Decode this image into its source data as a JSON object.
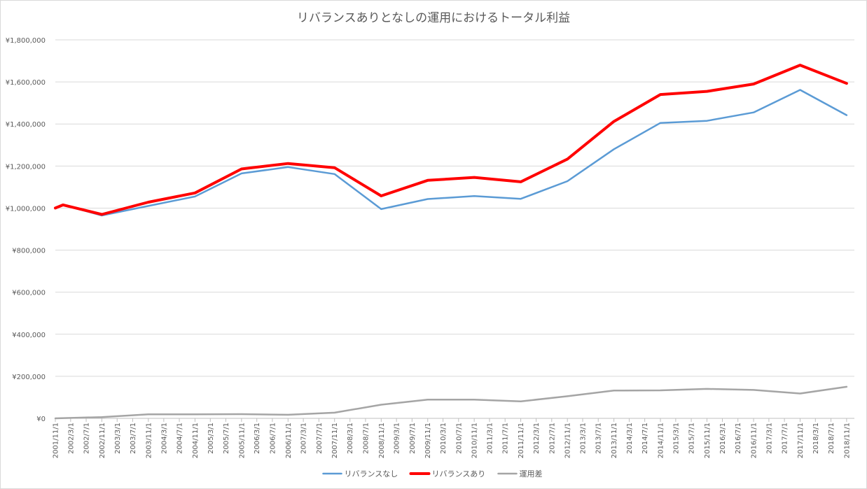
{
  "chart_data": {
    "type": "line",
    "title": "リバランスありとなしの運用におけるトータル利益",
    "xlabel": "",
    "ylabel": "",
    "ylim": [
      0,
      1800000
    ],
    "ytick_step": 200000,
    "ytick_labels": [
      "¥0",
      "¥200,000",
      "¥400,000",
      "¥600,000",
      "¥800,000",
      "¥1,000,000",
      "¥1,200,000",
      "¥1,400,000",
      "¥1,600,000",
      "¥1,800,000"
    ],
    "grid": true,
    "legend": "bottom",
    "x_start": "2001/11/1",
    "x_end": "2019/1/1",
    "tick_labels": [
      "2001/11/1",
      "2002/3/1",
      "2002/7/1",
      "2002/11/1",
      "2003/3/1",
      "2003/7/1",
      "2003/11/1",
      "2004/3/1",
      "2004/7/1",
      "2004/11/1",
      "2005/3/1",
      "2005/7/1",
      "2005/11/1",
      "2006/3/1",
      "2006/7/1",
      "2006/11/1",
      "2007/3/1",
      "2007/7/1",
      "2007/11/1",
      "2008/3/1",
      "2008/7/1",
      "2008/11/1",
      "2009/3/1",
      "2009/7/1",
      "2009/11/1",
      "2010/3/1",
      "2010/7/1",
      "2010/11/1",
      "2011/3/1",
      "2011/7/1",
      "2011/11/1",
      "2012/3/1",
      "2012/7/1",
      "2012/11/1",
      "2013/3/1",
      "2013/7/1",
      "2013/11/1",
      "2014/3/1",
      "2014/7/1",
      "2014/11/1",
      "2015/3/1",
      "2015/7/1",
      "2015/11/1",
      "2016/3/1",
      "2016/7/1",
      "2016/11/1",
      "2017/3/1",
      "2017/7/1",
      "2017/11/1",
      "2018/3/1",
      "2018/7/1",
      "2018/11/1"
    ],
    "series": [
      {
        "name": "リバランスなし",
        "color": "#5b9bd5",
        "width": 2.5,
        "x": [
          "2001/11/1",
          "2002/1/1",
          "2002/11/1",
          "2003/11/1",
          "2004/11/1",
          "2005/11/1",
          "2006/11/1",
          "2007/11/1",
          "2008/11/1",
          "2009/11/1",
          "2010/11/1",
          "2011/11/1",
          "2012/11/1",
          "2013/11/1",
          "2014/11/1",
          "2015/11/1",
          "2016/11/1",
          "2017/11/1",
          "2018/11/1"
        ],
        "values": [
          1000000,
          1015000,
          965000,
          1010000,
          1055000,
          1165000,
          1195000,
          1162000,
          995000,
          1043000,
          1057000,
          1044000,
          1128000,
          1280000,
          1405000,
          1415000,
          1455000,
          1562000,
          1442000
        ]
      },
      {
        "name": "リバランスあり",
        "color": "#ff0000",
        "width": 4,
        "x": [
          "2001/11/1",
          "2002/1/1",
          "2002/11/1",
          "2003/11/1",
          "2004/11/1",
          "2005/11/1",
          "2006/11/1",
          "2007/11/1",
          "2008/11/1",
          "2009/11/1",
          "2010/11/1",
          "2011/11/1",
          "2012/11/1",
          "2013/11/1",
          "2014/11/1",
          "2015/11/1",
          "2016/11/1",
          "2017/11/1",
          "2018/11/1"
        ],
        "values": [
          1000000,
          1015000,
          970000,
          1028000,
          1072000,
          1186000,
          1212000,
          1192000,
          1058000,
          1132000,
          1146000,
          1125000,
          1233000,
          1412000,
          1540000,
          1555000,
          1590000,
          1680000,
          1593000
        ]
      },
      {
        "name": "運用差",
        "color": "#a5a5a5",
        "width": 2.5,
        "x": [
          "2001/11/1",
          "2002/11/1",
          "2003/11/1",
          "2004/11/1",
          "2005/11/1",
          "2006/11/1",
          "2007/11/1",
          "2008/11/1",
          "2009/11/1",
          "2010/11/1",
          "2011/11/1",
          "2012/11/1",
          "2013/11/1",
          "2014/11/1",
          "2015/11/1",
          "2016/11/1",
          "2017/11/1",
          "2018/11/1"
        ],
        "values": [
          0,
          6000,
          19000,
          19000,
          20000,
          17000,
          27000,
          65000,
          89000,
          89000,
          81000,
          105000,
          132000,
          133000,
          140000,
          135000,
          118000,
          150000
        ]
      }
    ]
  }
}
